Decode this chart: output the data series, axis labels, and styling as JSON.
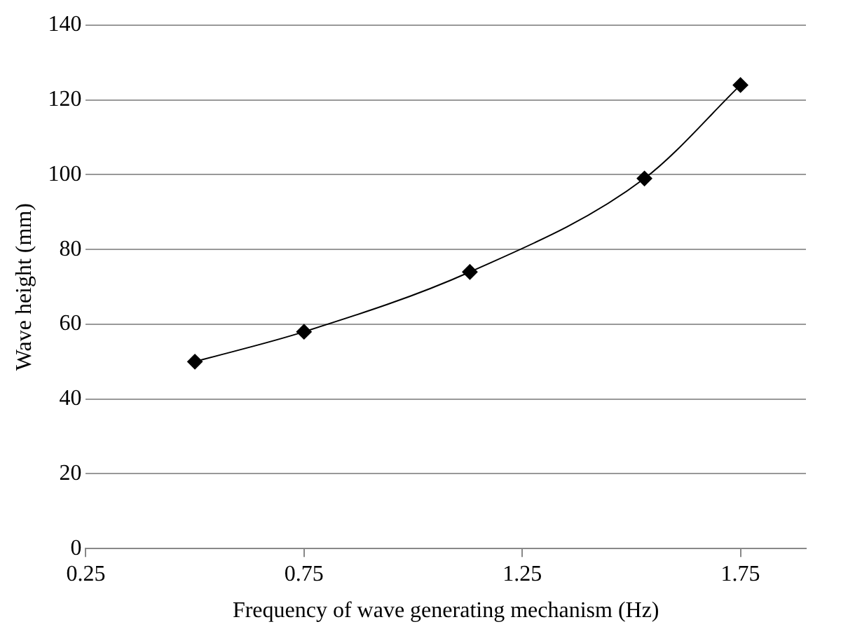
{
  "chart_data": {
    "type": "line",
    "xlabel": "Frequency of wave generating mechanism (Hz)",
    "ylabel": "Wave height (mm)",
    "x": [
      0.5,
      0.75,
      1.13,
      1.53,
      1.75
    ],
    "series": [
      {
        "color": "#000000",
        "values": [
          50,
          58,
          74,
          99,
          124
        ]
      }
    ],
    "xlim": [
      0.25,
      1.9
    ],
    "xticks": [
      0.25,
      0.75,
      1.25,
      1.75
    ],
    "ylim": [
      0,
      140
    ],
    "yticks": [
      0,
      20,
      40,
      60,
      80,
      100,
      120,
      140
    ],
    "grid": "y",
    "legend": false,
    "marker": "diamond",
    "line_style": "solid"
  }
}
